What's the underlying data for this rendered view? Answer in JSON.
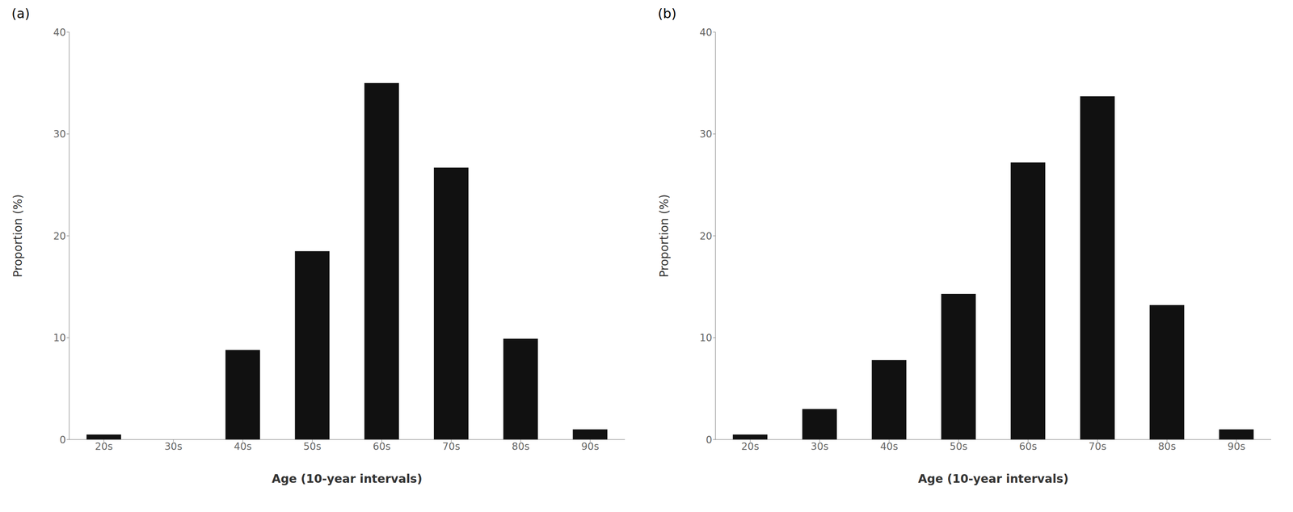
{
  "chart_data": [
    {
      "type": "bar",
      "title": "(a)",
      "categories": [
        "20s",
        "30s",
        "40s",
        "50s",
        "60s",
        "70s",
        "80s",
        "90s"
      ],
      "values": [
        0.5,
        0,
        8.8,
        18.5,
        35,
        26.7,
        9.9,
        1.0
      ],
      "color": "#111111",
      "xlabel": "Age (10-year intervals)",
      "ylabel": "Proportion (%)",
      "ylim": [
        0,
        40
      ],
      "yticks": [
        0,
        10,
        20,
        30,
        40
      ],
      "grid": false
    },
    {
      "type": "bar",
      "title": "(b)",
      "categories": [
        "20s",
        "30s",
        "40s",
        "50s",
        "60s",
        "70s",
        "80s",
        "90s"
      ],
      "values": [
        0.5,
        3.0,
        7.8,
        14.3,
        27.2,
        33.7,
        13.2,
        1.0
      ],
      "color": "#111111",
      "xlabel": "Age (10-year intervals)",
      "ylabel": "Proportion (%)",
      "ylim": [
        0,
        40
      ],
      "yticks": [
        0,
        10,
        20,
        30,
        40
      ],
      "grid": false
    }
  ]
}
